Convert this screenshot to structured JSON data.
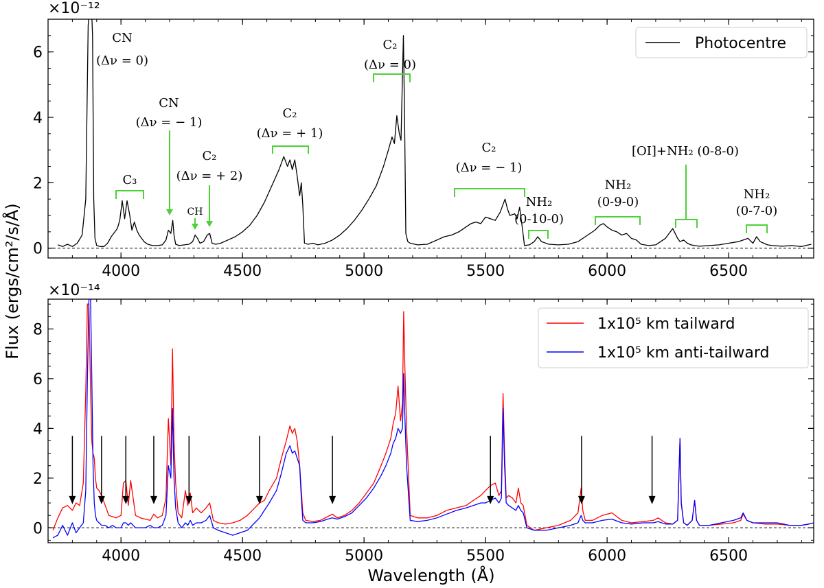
{
  "chart_data": [
    {
      "type": "line",
      "panel": "top",
      "multiplier": "×10⁻¹²",
      "xlim": [
        3700,
        6850
      ],
      "ylim": [
        -0.3,
        7.0
      ],
      "xticks": [
        4000,
        4500,
        5000,
        5500,
        6000,
        6500
      ],
      "yticks": [
        0,
        2,
        4,
        6
      ],
      "legend": {
        "placement": "top-right",
        "entries": [
          "Photocentre"
        ]
      },
      "series": [
        {
          "name": "Photocentre",
          "color": "#000000",
          "x": [
            3740,
            3760,
            3780,
            3800,
            3820,
            3840,
            3855,
            3865,
            3872,
            3878,
            3883,
            3888,
            3893,
            3900,
            3915,
            3930,
            3945,
            3960,
            3975,
            3985,
            3995,
            4005,
            4015,
            4025,
            4035,
            4045,
            4055,
            4065,
            4075,
            4085,
            4095,
            4110,
            4130,
            4150,
            4170,
            4185,
            4195,
            4205,
            4213,
            4218,
            4225,
            4240,
            4260,
            4280,
            4295,
            4305,
            4315,
            4325,
            4340,
            4355,
            4365,
            4375,
            4390,
            4410,
            4440,
            4470,
            4500,
            4530,
            4560,
            4590,
            4620,
            4650,
            4670,
            4685,
            4695,
            4705,
            4715,
            4725,
            4735,
            4742,
            4748,
            4755,
            4770,
            4790,
            4810,
            4840,
            4870,
            4900,
            4930,
            4960,
            4990,
            5020,
            5050,
            5080,
            5100,
            5115,
            5125,
            5135,
            5145,
            5152,
            5157,
            5162,
            5167,
            5172,
            5180,
            5190,
            5220,
            5260,
            5300,
            5330,
            5360,
            5390,
            5420,
            5440,
            5460,
            5480,
            5500,
            5520,
            5540,
            5560,
            5580,
            5590,
            5600,
            5620,
            5630,
            5640,
            5650,
            5660,
            5680,
            5700,
            5715,
            5730,
            5760,
            5800,
            5840,
            5880,
            5920,
            5950,
            5970,
            5985,
            6000,
            6020,
            6040,
            6060,
            6080,
            6100,
            6120,
            6140,
            6170,
            6200,
            6240,
            6270,
            6290,
            6300,
            6315,
            6330,
            6345,
            6360,
            6380,
            6420,
            6460,
            6500,
            6540,
            6580,
            6600,
            6615,
            6630,
            6645,
            6660,
            6680,
            6720,
            6760,
            6800,
            6840
          ],
          "y": [
            0.1,
            0.05,
            0.12,
            0.05,
            0.15,
            0.4,
            1.5,
            6.8,
            7.5,
            7.5,
            6.5,
            1.5,
            0.3,
            0.08,
            0.05,
            0.05,
            0.15,
            0.35,
            0.5,
            0.6,
            0.85,
            1.45,
            0.9,
            1.45,
            1.05,
            0.55,
            0.8,
            0.55,
            0.4,
            0.3,
            0.2,
            0.12,
            0.08,
            0.08,
            0.1,
            0.25,
            0.55,
            0.45,
            0.85,
            0.4,
            0.12,
            0.08,
            0.1,
            0.12,
            0.2,
            0.4,
            0.3,
            0.15,
            0.2,
            0.4,
            0.45,
            0.15,
            0.12,
            0.15,
            0.25,
            0.35,
            0.5,
            0.7,
            1.0,
            1.4,
            1.9,
            2.4,
            2.8,
            2.5,
            2.7,
            2.4,
            2.7,
            2.2,
            1.6,
            2.0,
            1.3,
            0.15,
            0.12,
            0.15,
            0.1,
            0.15,
            0.25,
            0.4,
            0.6,
            0.85,
            1.15,
            1.5,
            1.9,
            2.5,
            3.0,
            3.4,
            3.2,
            4.05,
            3.5,
            3.3,
            4.9,
            6.5,
            3.8,
            0.45,
            0.2,
            0.15,
            0.1,
            0.12,
            0.25,
            0.35,
            0.4,
            0.5,
            0.65,
            0.75,
            0.8,
            0.75,
            0.95,
            0.9,
            0.85,
            1.1,
            1.5,
            1.2,
            1.0,
            1.05,
            0.9,
            1.25,
            0.7,
            0.08,
            0.1,
            0.2,
            0.35,
            0.2,
            0.12,
            0.1,
            0.12,
            0.2,
            0.4,
            0.55,
            0.7,
            0.75,
            0.65,
            0.55,
            0.5,
            0.4,
            0.45,
            0.3,
            0.25,
            0.12,
            0.08,
            0.1,
            0.3,
            0.6,
            0.3,
            0.2,
            0.25,
            0.15,
            0.1,
            0.08,
            0.06,
            0.08,
            0.1,
            0.15,
            0.2,
            0.3,
            0.15,
            0.35,
            0.2,
            0.15,
            0.1,
            0.08,
            0.06,
            0.08,
            0.05,
            0.12
          ]
        }
      ],
      "annotations": [
        {
          "line1": "CN",
          "line2": "(Δν = 0)"
        },
        {
          "line1": "C₃",
          "line2": ""
        },
        {
          "line1": "CN",
          "line2": "(Δν = − 1)"
        },
        {
          "line1": "CH",
          "line2": ""
        },
        {
          "line1": "C₂",
          "line2": "(Δν = + 2)"
        },
        {
          "line1": "C₂",
          "line2": "(Δν = + 1)"
        },
        {
          "line1": "C₂",
          "line2": "(Δν = 0)"
        },
        {
          "line1": "C₂",
          "line2": "(Δν = − 1)"
        },
        {
          "line1": "NH₂",
          "line2": "(0-10-0)"
        },
        {
          "line1": "NH₂",
          "line2": "(0-9-0)"
        },
        {
          "line1": "[OI]+NH₂ (0-8-0)",
          "line2": ""
        },
        {
          "line1": "NH₂",
          "line2": "(0-7-0)"
        }
      ]
    },
    {
      "type": "line",
      "panel": "bottom",
      "multiplier": "×10⁻¹⁴",
      "xlabel": "Wavelength (Å)",
      "ylabel": "Flux (ergs/cm²/s/Å)",
      "xlim": [
        3700,
        6850
      ],
      "ylim": [
        -0.6,
        9.2
      ],
      "xticks": [
        4000,
        4500,
        5000,
        5500,
        6000,
        6500
      ],
      "yticks": [
        0,
        2,
        4,
        6,
        8
      ],
      "legend": {
        "placement": "top-right",
        "entries": [
          "1x10⁵ km tailward",
          "1x10⁵ km anti-tailward"
        ]
      },
      "arrows_x": [
        3800,
        3920,
        4020,
        4135,
        4280,
        4570,
        4870,
        5520,
        5895,
        6185
      ],
      "series": [
        {
          "name": "1x10⁵ km tailward",
          "color": "#ff0000",
          "x": [
            3720,
            3740,
            3760,
            3780,
            3800,
            3815,
            3830,
            3845,
            3855,
            3862,
            3868,
            3875,
            3880,
            3885,
            3890,
            3895,
            3900,
            3910,
            3920,
            3935,
            3950,
            3965,
            3980,
            4000,
            4010,
            4020,
            4030,
            4040,
            4060,
            4080,
            4100,
            4120,
            4135,
            4150,
            4170,
            4185,
            4195,
            4205,
            4212,
            4218,
            4225,
            4235,
            4250,
            4265,
            4275,
            4285,
            4295,
            4310,
            4330,
            4350,
            4365,
            4380,
            4400,
            4430,
            4460,
            4490,
            4520,
            4550,
            4570,
            4590,
            4610,
            4640,
            4660,
            4680,
            4695,
            4705,
            4715,
            4725,
            4735,
            4742,
            4748,
            4760,
            4790,
            4820,
            4850,
            4870,
            4890,
            4920,
            4950,
            4980,
            5010,
            5040,
            5070,
            5090,
            5110,
            5120,
            5130,
            5140,
            5150,
            5158,
            5163,
            5168,
            5175,
            5190,
            5220,
            5260,
            5300,
            5340,
            5380,
            5420,
            5450,
            5480,
            5500,
            5520,
            5540,
            5555,
            5565,
            5572,
            5578,
            5585,
            5595,
            5610,
            5625,
            5635,
            5645,
            5655,
            5670,
            5700,
            5750,
            5800,
            5850,
            5880,
            5893,
            5900,
            5910,
            5940,
            5980,
            6020,
            6060,
            6100,
            6150,
            6190,
            6210,
            6240,
            6270,
            6290,
            6300,
            6305,
            6315,
            6330,
            6350,
            6360,
            6368,
            6380,
            6420,
            6470,
            6520,
            6550,
            6560,
            6575,
            6600,
            6650,
            6700,
            6750,
            6800,
            6830,
            6850
          ],
          "y": [
            -0.1,
            0.4,
            0.8,
            0.9,
            0.7,
            1.0,
            0.9,
            1.8,
            5.5,
            9.0,
            9.0,
            5.5,
            3.5,
            3.0,
            2.8,
            2.0,
            1.6,
            1.5,
            1.3,
            0.9,
            0.5,
            0.45,
            0.4,
            0.5,
            1.8,
            1.9,
            0.9,
            1.9,
            0.5,
            0.4,
            0.35,
            0.3,
            0.55,
            0.4,
            0.5,
            1.2,
            4.4,
            2.5,
            7.2,
            3.5,
            1.8,
            0.6,
            0.4,
            1.5,
            0.9,
            1.4,
            0.6,
            0.8,
            0.6,
            0.8,
            1.0,
            0.3,
            0.2,
            0.15,
            0.2,
            0.3,
            0.5,
            0.8,
            1.0,
            1.1,
            1.5,
            2.0,
            2.8,
            3.5,
            4.1,
            3.8,
            4.0,
            3.5,
            2.5,
            1.5,
            0.6,
            0.3,
            0.25,
            0.3,
            0.45,
            0.55,
            0.4,
            0.5,
            0.7,
            1.0,
            1.4,
            1.8,
            2.5,
            3.0,
            3.6,
            4.2,
            4.6,
            5.7,
            4.3,
            5.0,
            8.7,
            6.5,
            4.0,
            0.5,
            0.4,
            0.4,
            0.5,
            0.7,
            0.8,
            0.9,
            1.1,
            1.3,
            1.5,
            1.7,
            1.8,
            1.3,
            1.5,
            5.4,
            3.0,
            1.2,
            1.3,
            1.2,
            1.0,
            1.6,
            1.0,
            0.9,
            0.1,
            -0.1,
            0.0,
            0.1,
            0.3,
            0.6,
            1.6,
            0.7,
            0.3,
            0.3,
            0.5,
            0.6,
            0.3,
            0.2,
            0.25,
            0.3,
            0.4,
            0.2,
            0.15,
            0.3,
            3.6,
            1.0,
            0.2,
            0.1,
            0.3,
            1.1,
            0.3,
            0.1,
            0.1,
            0.15,
            0.2,
            0.3,
            0.55,
            0.3,
            0.2,
            0.15,
            0.15,
            0.1,
            0.1,
            0.15,
            0.2
          ]
        },
        {
          "name": "1x10⁵ km anti-tailward",
          "color": "#0000ff",
          "x": [
            3720,
            3740,
            3760,
            3780,
            3800,
            3815,
            3830,
            3845,
            3855,
            3862,
            3868,
            3875,
            3880,
            3885,
            3890,
            3895,
            3900,
            3910,
            3920,
            3935,
            3950,
            3965,
            3980,
            4000,
            4010,
            4020,
            4030,
            4040,
            4060,
            4080,
            4100,
            4120,
            4135,
            4150,
            4170,
            4185,
            4195,
            4205,
            4212,
            4218,
            4225,
            4235,
            4250,
            4265,
            4275,
            4285,
            4295,
            4310,
            4330,
            4350,
            4365,
            4380,
            4400,
            4430,
            4460,
            4490,
            4520,
            4550,
            4570,
            4590,
            4610,
            4640,
            4660,
            4680,
            4695,
            4705,
            4715,
            4725,
            4735,
            4742,
            4748,
            4760,
            4790,
            4820,
            4850,
            4870,
            4890,
            4920,
            4950,
            4980,
            5010,
            5040,
            5070,
            5090,
            5110,
            5120,
            5130,
            5140,
            5150,
            5158,
            5163,
            5168,
            5175,
            5190,
            5220,
            5260,
            5300,
            5340,
            5380,
            5420,
            5450,
            5480,
            5500,
            5520,
            5540,
            5555,
            5565,
            5572,
            5578,
            5585,
            5595,
            5610,
            5625,
            5635,
            5645,
            5655,
            5670,
            5700,
            5750,
            5800,
            5850,
            5880,
            5893,
            5900,
            5910,
            5940,
            5980,
            6020,
            6060,
            6100,
            6150,
            6190,
            6210,
            6240,
            6270,
            6290,
            6300,
            6305,
            6315,
            6330,
            6350,
            6360,
            6368,
            6380,
            6420,
            6470,
            6520,
            6550,
            6560,
            6575,
            6600,
            6650,
            6700,
            6750,
            6800,
            6830,
            6850
          ],
          "y": [
            -0.4,
            -0.3,
            0.1,
            -0.3,
            0.2,
            -0.2,
            0.0,
            0.2,
            1.5,
            6.0,
            9.2,
            9.2,
            6.0,
            2.5,
            1.0,
            0.5,
            0.3,
            0.2,
            0.1,
            0.1,
            0.0,
            0.1,
            0.0,
            0.0,
            0.2,
            0.2,
            0.1,
            0.2,
            0.0,
            0.0,
            0.0,
            0.1,
            0.0,
            0.0,
            0.1,
            0.5,
            2.5,
            2.0,
            4.8,
            2.0,
            0.8,
            0.2,
            0.0,
            0.2,
            0.1,
            0.3,
            0.1,
            0.2,
            0.2,
            0.3,
            0.5,
            0.0,
            -0.1,
            -0.2,
            -0.3,
            -0.2,
            -0.1,
            0.2,
            0.4,
            0.7,
            1.0,
            1.5,
            2.2,
            3.0,
            3.3,
            3.0,
            3.1,
            2.8,
            2.5,
            1.2,
            0.3,
            0.2,
            0.2,
            0.25,
            0.35,
            0.4,
            0.35,
            0.45,
            0.6,
            0.9,
            1.2,
            1.6,
            2.1,
            2.5,
            3.0,
            3.4,
            3.6,
            4.0,
            3.8,
            4.0,
            6.2,
            4.5,
            2.5,
            0.3,
            0.25,
            0.3,
            0.4,
            0.55,
            0.7,
            0.8,
            0.9,
            1.0,
            1.0,
            1.1,
            1.2,
            1.0,
            1.2,
            4.8,
            2.5,
            1.0,
            0.9,
            0.8,
            0.7,
            0.9,
            0.7,
            0.6,
            0.0,
            -0.1,
            -0.1,
            0.0,
            0.1,
            0.2,
            0.5,
            0.3,
            0.2,
            0.2,
            0.3,
            0.35,
            0.2,
            0.15,
            0.2,
            0.2,
            0.25,
            0.15,
            0.15,
            0.3,
            3.6,
            1.0,
            0.2,
            0.1,
            0.3,
            1.1,
            0.3,
            0.1,
            0.1,
            0.2,
            0.3,
            0.4,
            0.6,
            0.3,
            0.2,
            0.2,
            0.2,
            0.1,
            0.1,
            0.15,
            0.2
          ]
        }
      ]
    }
  ]
}
